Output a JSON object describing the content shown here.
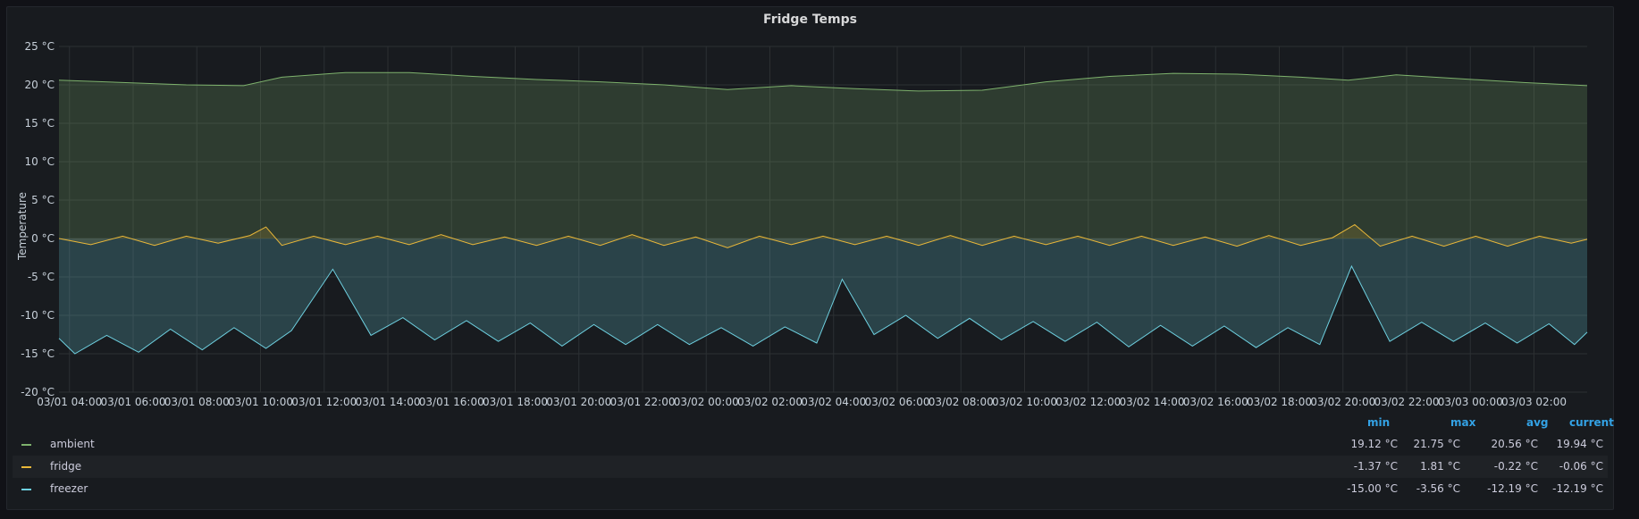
{
  "panel": {
    "title": "Fridge Temps"
  },
  "colors": {
    "ambient": "#7eb26d",
    "fridge": "#eab839",
    "freezer": "#6ed0e0",
    "grid": "#2c3033",
    "text": "#c7d0d9",
    "legend_header": "#33a2e5"
  },
  "chart_data": {
    "type": "area",
    "title": "Fridge Temps",
    "ylabel": "Temperature",
    "xlabel": "",
    "ylim": [
      -20,
      25
    ],
    "y_ticks": [
      "25 °C",
      "20 °C",
      "15 °C",
      "10 °C",
      "5 °C",
      "0 °C",
      "-5 °C",
      "-10 °C",
      "-15 °C",
      "-20 °C"
    ],
    "x_ticks": [
      "03/01 04:00",
      "03/01 06:00",
      "03/01 08:00",
      "03/01 10:00",
      "03/01 12:00",
      "03/01 14:00",
      "03/01 16:00",
      "03/01 18:00",
      "03/01 20:00",
      "03/01 22:00",
      "03/02 00:00",
      "03/02 02:00",
      "03/02 04:00",
      "03/02 06:00",
      "03/02 08:00",
      "03/02 10:00",
      "03/02 12:00",
      "03/02 14:00",
      "03/02 16:00",
      "03/02 18:00",
      "03/02 20:00",
      "03/02 22:00",
      "03/03 00:00",
      "03/03 02:00"
    ],
    "x_range_hours": [
      "03/01 03:40",
      "03/03 03:40"
    ],
    "grid": true,
    "series": [
      {
        "name": "ambient",
        "points": [
          [
            0,
            20.6
          ],
          [
            2,
            20.3
          ],
          [
            4,
            20.0
          ],
          [
            5.8,
            19.9
          ],
          [
            7,
            21.0
          ],
          [
            9,
            21.6
          ],
          [
            11,
            21.6
          ],
          [
            13,
            21.1
          ],
          [
            15,
            20.7
          ],
          [
            17,
            20.4
          ],
          [
            19,
            20.0
          ],
          [
            21,
            19.4
          ],
          [
            23,
            19.9
          ],
          [
            25,
            19.5
          ],
          [
            27,
            19.2
          ],
          [
            29,
            19.3
          ],
          [
            31,
            20.4
          ],
          [
            33,
            21.1
          ],
          [
            35,
            21.5
          ],
          [
            37,
            21.4
          ],
          [
            39,
            21.0
          ],
          [
            40.5,
            20.6
          ],
          [
            42,
            21.3
          ],
          [
            44,
            20.8
          ],
          [
            46,
            20.3
          ],
          [
            48,
            19.9
          ]
        ]
      },
      {
        "name": "fridge",
        "points": [
          [
            0,
            0.0
          ],
          [
            1,
            -0.8
          ],
          [
            2,
            0.3
          ],
          [
            3,
            -0.9
          ],
          [
            4,
            0.3
          ],
          [
            5,
            -0.6
          ],
          [
            6,
            0.4
          ],
          [
            6.5,
            1.5
          ],
          [
            7,
            -0.9
          ],
          [
            8,
            0.3
          ],
          [
            9,
            -0.8
          ],
          [
            10,
            0.3
          ],
          [
            11,
            -0.8
          ],
          [
            12,
            0.5
          ],
          [
            13,
            -0.8
          ],
          [
            14,
            0.2
          ],
          [
            15,
            -0.9
          ],
          [
            16,
            0.3
          ],
          [
            17,
            -0.9
          ],
          [
            18,
            0.5
          ],
          [
            19,
            -0.9
          ],
          [
            20,
            0.2
          ],
          [
            21,
            -1.2
          ],
          [
            22,
            0.3
          ],
          [
            23,
            -0.8
          ],
          [
            24,
            0.3
          ],
          [
            25,
            -0.8
          ],
          [
            26,
            0.3
          ],
          [
            27,
            -0.9
          ],
          [
            28,
            0.4
          ],
          [
            29,
            -0.9
          ],
          [
            30,
            0.3
          ],
          [
            31,
            -0.8
          ],
          [
            32,
            0.3
          ],
          [
            33,
            -0.9
          ],
          [
            34,
            0.3
          ],
          [
            35,
            -0.9
          ],
          [
            36,
            0.2
          ],
          [
            37,
            -1.0
          ],
          [
            38,
            0.4
          ],
          [
            39,
            -0.9
          ],
          [
            40,
            0.1
          ],
          [
            40.7,
            1.8
          ],
          [
            41.5,
            -1.0
          ],
          [
            42.5,
            0.3
          ],
          [
            43.5,
            -1.0
          ],
          [
            44.5,
            0.3
          ],
          [
            45.5,
            -1.0
          ],
          [
            46.5,
            0.3
          ],
          [
            47.5,
            -0.6
          ],
          [
            48,
            -0.1
          ]
        ]
      },
      {
        "name": "freezer",
        "points": [
          [
            0,
            -13.0
          ],
          [
            0.5,
            -15.0
          ],
          [
            1.5,
            -12.6
          ],
          [
            2.5,
            -14.8
          ],
          [
            3.5,
            -11.8
          ],
          [
            4.5,
            -14.5
          ],
          [
            5.5,
            -11.6
          ],
          [
            6.5,
            -14.3
          ],
          [
            7.3,
            -12.0
          ],
          [
            8.6,
            -4.0
          ],
          [
            9.8,
            -12.6
          ],
          [
            10.8,
            -10.3
          ],
          [
            11.8,
            -13.2
          ],
          [
            12.8,
            -10.7
          ],
          [
            13.8,
            -13.4
          ],
          [
            14.8,
            -11.0
          ],
          [
            15.8,
            -14.0
          ],
          [
            16.8,
            -11.2
          ],
          [
            17.8,
            -13.8
          ],
          [
            18.8,
            -11.2
          ],
          [
            19.8,
            -13.8
          ],
          [
            20.8,
            -11.6
          ],
          [
            21.8,
            -14.0
          ],
          [
            22.8,
            -11.5
          ],
          [
            23.8,
            -13.6
          ],
          [
            24.6,
            -5.3
          ],
          [
            25.6,
            -12.5
          ],
          [
            26.6,
            -10.0
          ],
          [
            27.6,
            -13.0
          ],
          [
            28.6,
            -10.4
          ],
          [
            29.6,
            -13.2
          ],
          [
            30.6,
            -10.8
          ],
          [
            31.6,
            -13.4
          ],
          [
            32.6,
            -10.9
          ],
          [
            33.6,
            -14.1
          ],
          [
            34.6,
            -11.3
          ],
          [
            35.6,
            -14.0
          ],
          [
            36.6,
            -11.4
          ],
          [
            37.6,
            -14.2
          ],
          [
            38.6,
            -11.6
          ],
          [
            39.6,
            -13.8
          ],
          [
            40.6,
            -3.6
          ],
          [
            41.8,
            -13.4
          ],
          [
            42.8,
            -10.9
          ],
          [
            43.8,
            -13.4
          ],
          [
            44.8,
            -11.0
          ],
          [
            45.8,
            -13.6
          ],
          [
            46.8,
            -11.1
          ],
          [
            47.6,
            -13.8
          ],
          [
            48,
            -12.2
          ]
        ]
      }
    ]
  },
  "legend": {
    "headers": {
      "min": "min",
      "max": "max",
      "avg": "avg",
      "current": "current"
    },
    "rows": [
      {
        "name": "ambient",
        "color": "#7eb26d",
        "min": "19.12 °C",
        "max": "21.75 °C",
        "avg": "20.56 °C",
        "current": "19.94 °C"
      },
      {
        "name": "fridge",
        "color": "#eab839",
        "min": "-1.37 °C",
        "max": "1.81 °C",
        "avg": "-0.22 °C",
        "current": "-0.06 °C"
      },
      {
        "name": "freezer",
        "color": "#6ed0e0",
        "min": "-15.00 °C",
        "max": "-3.56 °C",
        "avg": "-12.19 °C",
        "current": "-12.19 °C"
      }
    ]
  }
}
